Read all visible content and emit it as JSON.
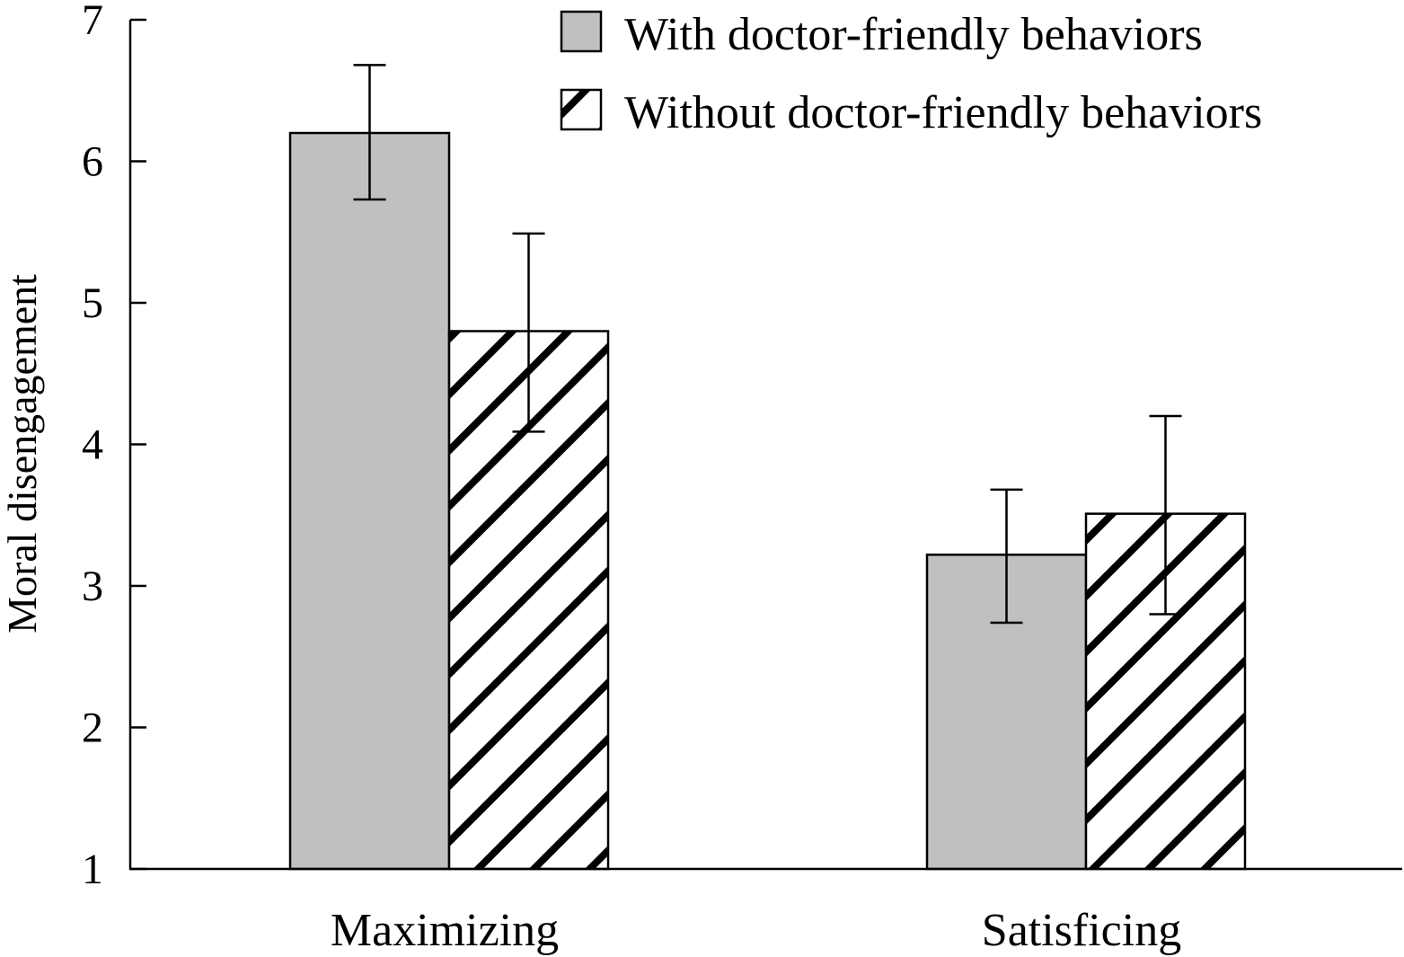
{
  "chart_data": {
    "type": "bar",
    "title": "",
    "xlabel": "",
    "ylabel": "Moral disengagement",
    "ylim": [
      1,
      7
    ],
    "yticks": [
      1,
      2,
      3,
      4,
      5,
      6,
      7
    ],
    "grid": false,
    "legend_position": "top-right",
    "categories": [
      "Maximizing",
      "Satisficing"
    ],
    "series": [
      {
        "name": "With doctor-friendly behaviors",
        "pattern": "solid",
        "color": "#c0bfc1",
        "values": [
          6.2,
          3.22
        ],
        "error_upper": [
          6.68,
          3.68
        ],
        "error_lower": [
          5.73,
          2.74
        ]
      },
      {
        "name": "Without doctor-friendly behaviors",
        "pattern": "hatch",
        "color": "#ffffff",
        "hatch_color": "#000000",
        "values": [
          4.8,
          3.51
        ],
        "error_upper": [
          5.49,
          4.2
        ],
        "error_lower": [
          4.09,
          2.8
        ]
      }
    ]
  }
}
